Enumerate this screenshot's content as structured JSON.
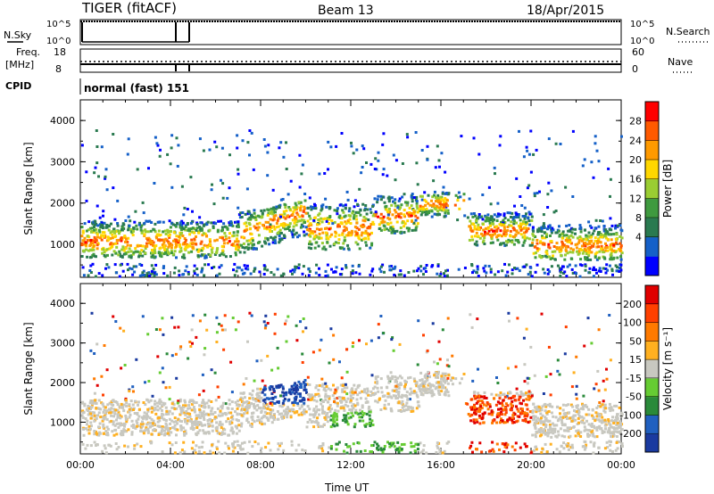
{
  "header": {
    "title": "TIGER (fitACF)",
    "beam": "Beam 13",
    "date": "18/Apr/2015"
  },
  "status_panels": {
    "nsky_label": "N.Sky",
    "nsky_ticks": [
      "10^5",
      "10^0"
    ],
    "nsearch_label": "N.Search",
    "nsearch_ticks": [
      "10^5",
      "10^0"
    ],
    "freq_label": "Freq.",
    "freq_unit": "[MHz]",
    "freq_ticks": [
      "18",
      "8"
    ],
    "nave_label": "Nave",
    "nave_ticks": [
      "60",
      "0"
    ],
    "cpid_label": "CPID",
    "cpid_text": "normal (fast) 151"
  },
  "chart_data": [
    {
      "type": "heatmap",
      "name": "power",
      "ylabel": "Slant Range [km]",
      "ylim": [
        200,
        4500
      ],
      "yticks": [
        "4000",
        "3000",
        "2000",
        "1000"
      ],
      "xticks": [
        "00:00",
        "04:00",
        "08:00",
        "12:00",
        "16:00",
        "20:00",
        "00:00"
      ],
      "colorbar": {
        "label": "Power [dB]",
        "ticks": [
          "28",
          "24",
          "20",
          "16",
          "12",
          "8",
          "4"
        ],
        "colors": [
          "#0000ff",
          "#1560c8",
          "#2a7a50",
          "#3f9a3f",
          "#9acd32",
          "#ffd700",
          "#ff9a00",
          "#ff5a00",
          "#ff0000"
        ]
      }
    },
    {
      "type": "heatmap",
      "name": "velocity",
      "ylabel": "Slant Range [km]",
      "ylim": [
        200,
        4500
      ],
      "yticks": [
        "4000",
        "3000",
        "2000",
        "1000"
      ],
      "xticks": [
        "00:00",
        "04:00",
        "08:00",
        "12:00",
        "16:00",
        "20:00",
        "00:00"
      ],
      "xlabel": "Time UT",
      "colorbar": {
        "label": "Velocity [m s⁻¹]",
        "ticks": [
          "200",
          "100",
          "50",
          "15",
          "-15",
          "-50",
          "-100",
          "-200"
        ],
        "colors": [
          "#1a3aa0",
          "#2060c0",
          "#2a8a3a",
          "#66cc33",
          "#c8c8c0",
          "#ffb020",
          "#ff7a00",
          "#ff4000",
          "#e00000"
        ]
      }
    }
  ]
}
